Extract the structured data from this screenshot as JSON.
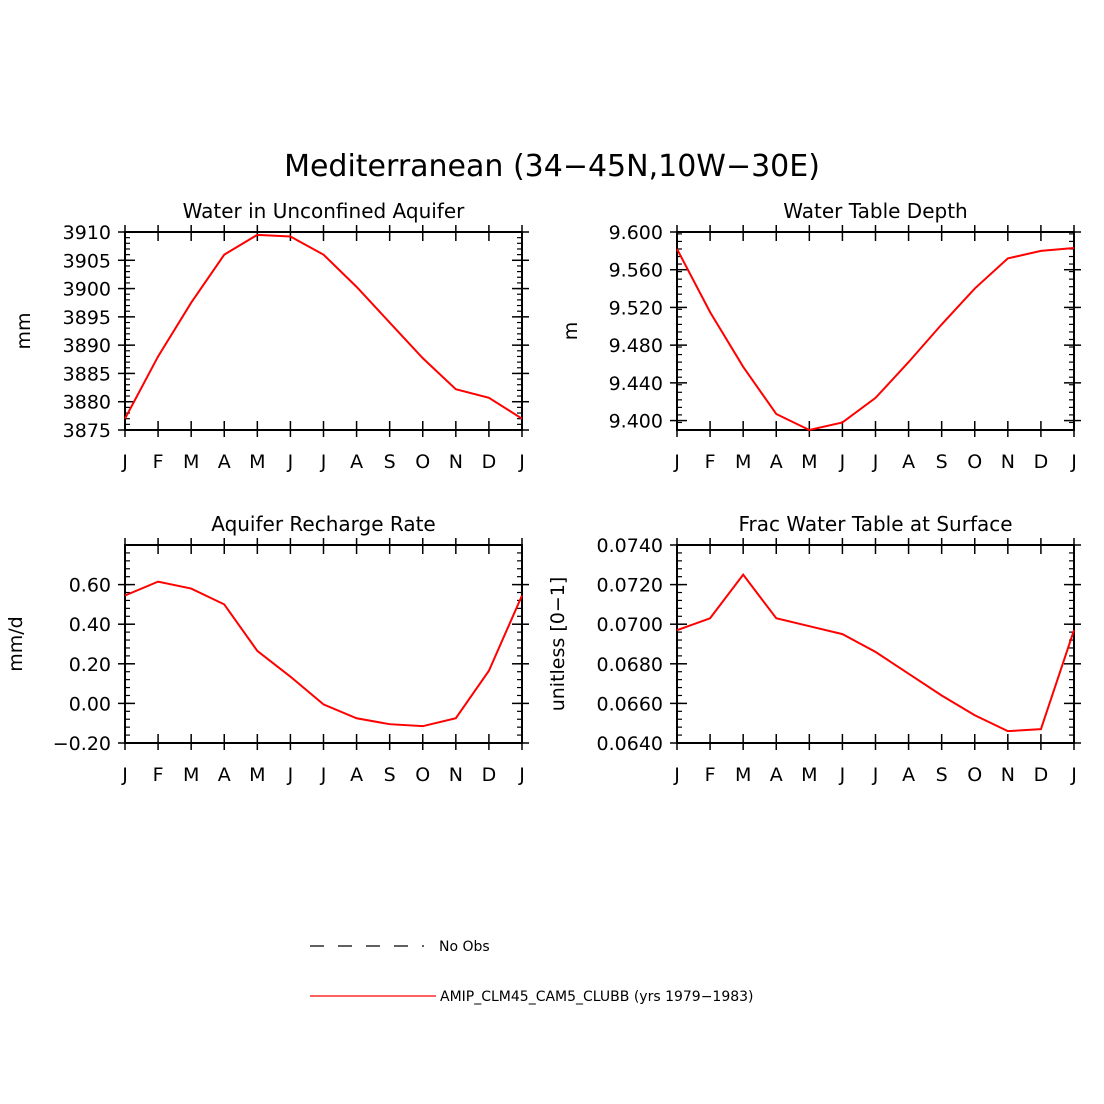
{
  "figure": {
    "title": "Mediterranean (34−45N,10W−30E)"
  },
  "legend": {
    "entries": [
      {
        "label": "No Obs",
        "color": "#000000",
        "dash": true
      },
      {
        "label": "AMIP_CLM45_CAM5_CLUBB (yrs 1979−1983)",
        "color": "#ff0000",
        "dash": false
      }
    ]
  },
  "chart_data": [
    {
      "type": "line",
      "title": "Water in Unconfined Aquifer",
      "xlabel": "",
      "ylabel": "mm",
      "x": [
        "J",
        "F",
        "M",
        "A",
        "M",
        "J",
        "J",
        "A",
        "S",
        "O",
        "N",
        "D",
        "J"
      ],
      "ylim": [
        3875,
        3910
      ],
      "yticks": [
        3875,
        3880,
        3885,
        3890,
        3895,
        3900,
        3905,
        3910
      ],
      "yticklabels": [
        "3875",
        "3880",
        "3885",
        "3890",
        "3895",
        "3900",
        "3905",
        "3910"
      ],
      "series": [
        {
          "name": "AMIP_CLM45_CAM5_CLUBB (yrs 1979−1983)",
          "color": "#ff0000",
          "values": [
            3877.0,
            3888.0,
            3897.5,
            3906.0,
            3909.5,
            3909.2,
            3906.0,
            3900.3,
            3894.0,
            3887.7,
            3882.2,
            3880.7,
            3877.0
          ]
        }
      ]
    },
    {
      "type": "line",
      "title": "Water Table Depth",
      "xlabel": "",
      "ylabel": "m",
      "x": [
        "J",
        "F",
        "M",
        "A",
        "M",
        "J",
        "J",
        "A",
        "S",
        "O",
        "N",
        "D",
        "J"
      ],
      "ylim": [
        9.39,
        9.6
      ],
      "yticks": [
        9.4,
        9.44,
        9.48,
        9.52,
        9.56,
        9.6
      ],
      "yticklabels": [
        "9.400",
        "9.440",
        "9.480",
        "9.520",
        "9.560",
        "9.600"
      ],
      "series": [
        {
          "name": "AMIP_CLM45_CAM5_CLUBB (yrs 1979−1983)",
          "color": "#ff0000",
          "values": [
            9.582,
            9.515,
            9.457,
            9.407,
            9.39,
            9.398,
            9.424,
            9.462,
            9.502,
            9.54,
            9.572,
            9.58,
            9.583
          ]
        }
      ]
    },
    {
      "type": "line",
      "title": "Aquifer Recharge Rate",
      "xlabel": "",
      "ylabel": "mm/d",
      "x": [
        "J",
        "F",
        "M",
        "A",
        "M",
        "J",
        "J",
        "A",
        "S",
        "O",
        "N",
        "D",
        "J"
      ],
      "ylim": [
        -0.2,
        0.8
      ],
      "yticks": [
        -0.2,
        0.0,
        0.2,
        0.4,
        0.6
      ],
      "yticklabels": [
        "−0.20",
        "0.00",
        "0.20",
        "0.40",
        "0.60"
      ],
      "series": [
        {
          "name": "AMIP_CLM45_CAM5_CLUBB (yrs 1979−1983)",
          "color": "#ff0000",
          "values": [
            0.545,
            0.615,
            0.58,
            0.5,
            0.265,
            0.135,
            -0.005,
            -0.075,
            -0.105,
            -0.115,
            -0.075,
            0.165,
            0.545
          ]
        }
      ]
    },
    {
      "type": "line",
      "title": "Frac Water Table at Surface",
      "xlabel": "",
      "ylabel": "unitless [0−1]",
      "x": [
        "J",
        "F",
        "M",
        "A",
        "M",
        "J",
        "J",
        "A",
        "S",
        "O",
        "N",
        "D",
        "J"
      ],
      "ylim": [
        0.064,
        0.074
      ],
      "yticks": [
        0.064,
        0.066,
        0.068,
        0.07,
        0.072,
        0.074
      ],
      "yticklabels": [
        "0.0640",
        "0.0660",
        "0.0680",
        "0.0700",
        "0.0720",
        "0.0740"
      ],
      "series": [
        {
          "name": "AMIP_CLM45_CAM5_CLUBB (yrs 1979−1983)",
          "color": "#ff0000",
          "values": [
            0.0697,
            0.0703,
            0.0725,
            0.0703,
            0.0699,
            0.0695,
            0.0686,
            0.0675,
            0.0664,
            0.0654,
            0.0646,
            0.0647,
            0.0697
          ]
        }
      ]
    }
  ]
}
